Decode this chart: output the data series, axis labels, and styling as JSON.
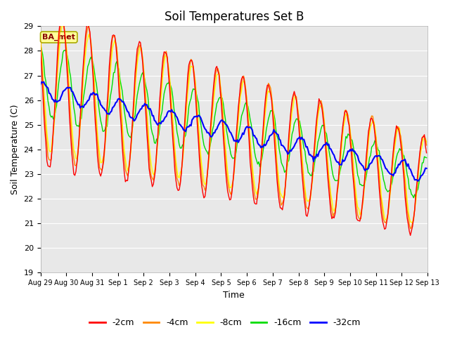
{
  "title": "Soil Temperatures Set B",
  "xlabel": "Time",
  "ylabel": "Soil Temperature (C)",
  "ylim": [
    19.0,
    29.0
  ],
  "yticks": [
    19.0,
    20.0,
    21.0,
    22.0,
    23.0,
    24.0,
    25.0,
    26.0,
    27.0,
    28.0,
    29.0
  ],
  "xtick_labels": [
    "Aug 29",
    "Aug 30",
    "Aug 31",
    "Sep 1",
    "Sep 2",
    "Sep 3",
    "Sep 4",
    "Sep 5",
    "Sep 6",
    "Sep 7",
    "Sep 8",
    "Sep 9",
    "Sep 10",
    "Sep 11",
    "Sep 12",
    "Sep 13"
  ],
  "colors": {
    "-2cm": "#ff0000",
    "-4cm": "#ff8800",
    "-8cm": "#ffff00",
    "-16cm": "#00dd00",
    "-32cm": "#0000ff"
  },
  "legend_labels": [
    "-2cm",
    "-4cm",
    "-8cm",
    "-16cm",
    "-32cm"
  ],
  "annotation_text": "BA_met",
  "annotation_bg": "#ffff99",
  "annotation_border": "#aaaa00",
  "annotation_fg": "#880000",
  "fig_bg": "#ffffff",
  "plot_bg": "#e8e8e8",
  "title_fontsize": 12,
  "axis_fontsize": 9,
  "tick_fontsize": 8,
  "legend_fontsize": 9,
  "linewidth_shallow": 1.0,
  "linewidth_deep": 1.5
}
